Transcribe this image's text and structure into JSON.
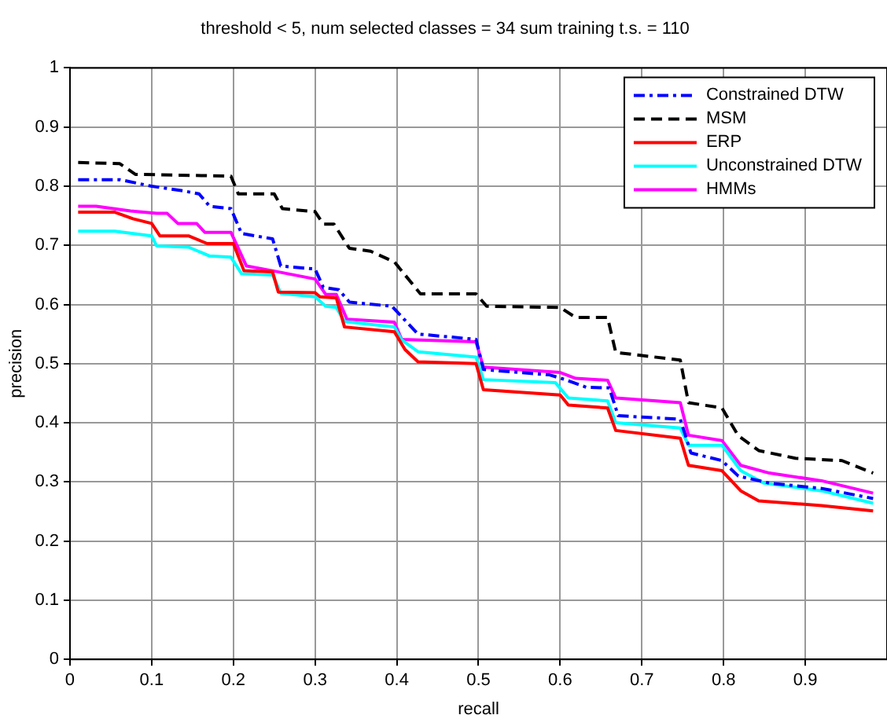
{
  "chart_data": {
    "type": "line",
    "title": "threshold < 5, num selected classes = 34 sum training t.s. = 110",
    "xlabel": "recall",
    "ylabel": "precision",
    "xlim": [
      0,
      1
    ],
    "xticks": [
      0,
      0.1,
      0.2,
      0.3,
      0.4,
      0.5,
      0.6,
      0.7,
      0.8,
      0.9
    ],
    "ylim": [
      0,
      1
    ],
    "yticks": [
      0,
      0.1,
      0.2,
      0.3,
      0.4,
      0.5,
      0.6,
      0.7,
      0.8,
      0.9,
      1
    ],
    "grid": true,
    "legend": "top right",
    "marker": "none",
    "series": [
      {
        "name": "Constrained DTW",
        "color": "#0000ff",
        "line_style": "dashdot",
        "x": [
          0.01,
          0.061,
          0.1,
          0.139,
          0.158,
          0.171,
          0.197,
          0.21,
          0.248,
          0.258,
          0.3,
          0.31,
          0.329,
          0.342,
          0.394,
          0.426,
          0.497,
          0.506,
          0.587,
          0.606,
          0.632,
          0.66,
          0.671,
          0.747,
          0.76,
          0.798,
          0.818,
          0.856,
          0.92,
          0.983
        ],
        "values": [
          0.811,
          0.811,
          0.8,
          0.792,
          0.787,
          0.766,
          0.762,
          0.72,
          0.711,
          0.665,
          0.66,
          0.629,
          0.625,
          0.604,
          0.597,
          0.55,
          0.541,
          0.49,
          0.481,
          0.473,
          0.46,
          0.459,
          0.412,
          0.406,
          0.349,
          0.336,
          0.31,
          0.298,
          0.289,
          0.272
        ]
      },
      {
        "name": "MSM",
        "color": "#000000",
        "line_style": "dashed",
        "x": [
          0.01,
          0.061,
          0.08,
          0.197,
          0.206,
          0.25,
          0.26,
          0.3,
          0.31,
          0.323,
          0.342,
          0.368,
          0.397,
          0.429,
          0.497,
          0.51,
          0.6,
          0.619,
          0.658,
          0.668,
          0.747,
          0.757,
          0.798,
          0.818,
          0.843,
          0.888,
          0.945,
          0.983
        ],
        "values": [
          0.84,
          0.838,
          0.82,
          0.817,
          0.787,
          0.787,
          0.762,
          0.757,
          0.736,
          0.736,
          0.695,
          0.69,
          0.672,
          0.618,
          0.618,
          0.597,
          0.595,
          0.578,
          0.578,
          0.519,
          0.506,
          0.434,
          0.425,
          0.378,
          0.353,
          0.34,
          0.336,
          0.315
        ]
      },
      {
        "name": "ERP",
        "color": "#ff0000",
        "line_style": "solid",
        "x": [
          0.01,
          0.055,
          0.077,
          0.1,
          0.11,
          0.145,
          0.168,
          0.2,
          0.213,
          0.248,
          0.255,
          0.3,
          0.306,
          0.326,
          0.336,
          0.397,
          0.41,
          0.426,
          0.497,
          0.506,
          0.6,
          0.61,
          0.658,
          0.668,
          0.747,
          0.757,
          0.798,
          0.821,
          0.843,
          0.92,
          0.983
        ],
        "values": [
          0.756,
          0.756,
          0.745,
          0.737,
          0.716,
          0.716,
          0.703,
          0.703,
          0.657,
          0.655,
          0.621,
          0.62,
          0.613,
          0.611,
          0.562,
          0.554,
          0.524,
          0.503,
          0.5,
          0.456,
          0.447,
          0.43,
          0.425,
          0.387,
          0.374,
          0.328,
          0.319,
          0.285,
          0.268,
          0.26,
          0.251
        ]
      },
      {
        "name": "Unconstrained DTW",
        "color": "#00ffff",
        "line_style": "solid",
        "x": [
          0.01,
          0.055,
          0.1,
          0.106,
          0.145,
          0.171,
          0.197,
          0.21,
          0.248,
          0.258,
          0.3,
          0.313,
          0.326,
          0.336,
          0.397,
          0.406,
          0.426,
          0.497,
          0.506,
          0.594,
          0.61,
          0.658,
          0.668,
          0.747,
          0.757,
          0.798,
          0.821,
          0.849,
          0.92,
          0.983
        ],
        "values": [
          0.724,
          0.724,
          0.716,
          0.699,
          0.697,
          0.682,
          0.68,
          0.652,
          0.65,
          0.619,
          0.613,
          0.597,
          0.595,
          0.571,
          0.562,
          0.54,
          0.52,
          0.511,
          0.473,
          0.468,
          0.442,
          0.437,
          0.4,
          0.391,
          0.362,
          0.362,
          0.319,
          0.298,
          0.285,
          0.264
        ]
      },
      {
        "name": "HMMs",
        "color": "#ff00ff",
        "line_style": "solid",
        "x": [
          0.01,
          0.032,
          0.074,
          0.106,
          0.119,
          0.132,
          0.155,
          0.165,
          0.197,
          0.216,
          0.248,
          0.3,
          0.313,
          0.326,
          0.339,
          0.397,
          0.406,
          0.497,
          0.506,
          0.6,
          0.619,
          0.658,
          0.668,
          0.747,
          0.757,
          0.798,
          0.821,
          0.856,
          0.92,
          0.983
        ],
        "values": [
          0.766,
          0.766,
          0.758,
          0.754,
          0.754,
          0.737,
          0.737,
          0.722,
          0.722,
          0.665,
          0.657,
          0.643,
          0.617,
          0.617,
          0.575,
          0.57,
          0.541,
          0.537,
          0.494,
          0.485,
          0.475,
          0.472,
          0.442,
          0.434,
          0.379,
          0.37,
          0.328,
          0.315,
          0.302,
          0.281
        ]
      }
    ]
  }
}
